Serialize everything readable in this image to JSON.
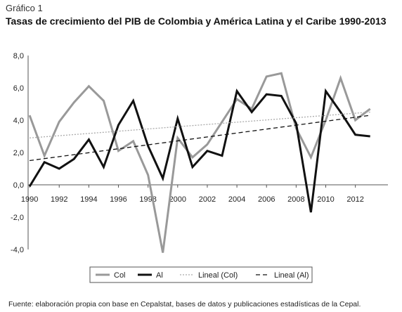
{
  "header": {
    "figure_label": "Gráfico 1",
    "title": "Tasas de crecimiento del PIB de Colombia y América Latina y el Caribe 1990-2013"
  },
  "footer": {
    "source": "Fuente: elaboración propia con base en Cepalstat, bases de datos y publicaciones estadísticas de la Cepal."
  },
  "chart_data": {
    "type": "line",
    "title": "Tasas de crecimiento del PIB de Colombia y América Latina y el Caribe 1990-2013",
    "xlabel": "",
    "ylabel": "",
    "x": [
      1990,
      1991,
      1992,
      1993,
      1994,
      1995,
      1996,
      1997,
      1998,
      1999,
      2000,
      2001,
      2002,
      2003,
      2004,
      2005,
      2006,
      2007,
      2008,
      2009,
      2010,
      2011,
      2012,
      2013
    ],
    "xticks": [
      1990,
      1992,
      1994,
      1996,
      1998,
      2000,
      2002,
      2004,
      2006,
      2008,
      2010,
      2012
    ],
    "xtick_labels": [
      "1990",
      "1992",
      "1994",
      "1996",
      "1998",
      "2000",
      "2002",
      "2004",
      "2006",
      "2008",
      "2010",
      "2012"
    ],
    "xlim": [
      1989.9,
      2014.2
    ],
    "ylim": [
      -4.0,
      8.0
    ],
    "yticks": [
      -4.0,
      -2.0,
      0.0,
      2.0,
      4.0,
      6.0,
      8.0
    ],
    "ytick_labels": [
      "-4,0",
      "-2,0",
      "0,0",
      "2,0",
      "4,0",
      "6,0",
      "8,0"
    ],
    "grid": false,
    "legend_position": "bottom",
    "series": [
      {
        "name": "Col",
        "color": "#999999",
        "style": "solid",
        "values": [
          4.3,
          1.8,
          3.9,
          5.1,
          6.1,
          5.2,
          2.1,
          2.7,
          0.6,
          -4.2,
          2.9,
          1.7,
          2.5,
          3.9,
          5.3,
          4.7,
          6.7,
          6.9,
          3.5,
          1.7,
          4.0,
          6.6,
          4.0,
          4.7
        ]
      },
      {
        "name": "Al",
        "color": "#111111",
        "style": "solid",
        "values": [
          -0.1,
          1.4,
          1.0,
          1.6,
          2.8,
          1.1,
          3.7,
          5.2,
          2.4,
          0.4,
          4.1,
          1.1,
          2.1,
          1.8,
          5.8,
          4.5,
          5.6,
          5.5,
          3.8,
          -1.7,
          5.8,
          4.5,
          3.1,
          3.0
        ]
      },
      {
        "name": "Lineal (Col)",
        "color": "#aaaaaa",
        "style": "dotted",
        "values": [
          2.9,
          4.5
        ],
        "x": [
          1990,
          2013
        ]
      },
      {
        "name": "Lineal (Al)",
        "color": "#111111",
        "style": "dashed",
        "values": [
          1.5,
          4.3
        ],
        "x": [
          1990,
          2013
        ]
      }
    ]
  }
}
